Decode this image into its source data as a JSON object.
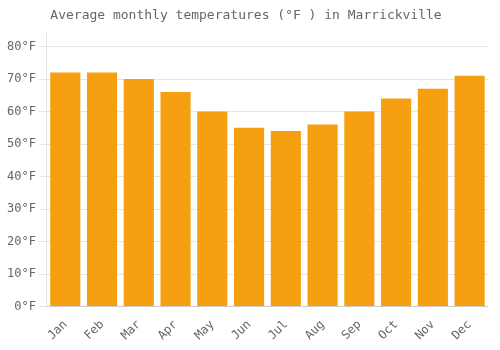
{
  "chart_data": {
    "type": "bar",
    "title": "Average monthly temperatures (°F ) in Marrickville",
    "categories": [
      "Jan",
      "Feb",
      "Mar",
      "Apr",
      "May",
      "Jun",
      "Jul",
      "Aug",
      "Sep",
      "Oct",
      "Nov",
      "Dec"
    ],
    "values": [
      72,
      72,
      70,
      66,
      60,
      55,
      54,
      56,
      60,
      64,
      67,
      71
    ],
    "color": "#F6A011",
    "ylim": [
      0,
      84
    ],
    "yticks": [
      {
        "value": 0,
        "label": "0°F"
      },
      {
        "value": 10,
        "label": "10°F"
      },
      {
        "value": 20,
        "label": "20°F"
      },
      {
        "value": 30,
        "label": "30°F"
      },
      {
        "value": 40,
        "label": "40°F"
      },
      {
        "value": 50,
        "label": "50°F"
      },
      {
        "value": 60,
        "label": "60°F"
      },
      {
        "value": 70,
        "label": "70°F"
      },
      {
        "value": 80,
        "label": "80°F"
      }
    ],
    "grid": true
  }
}
